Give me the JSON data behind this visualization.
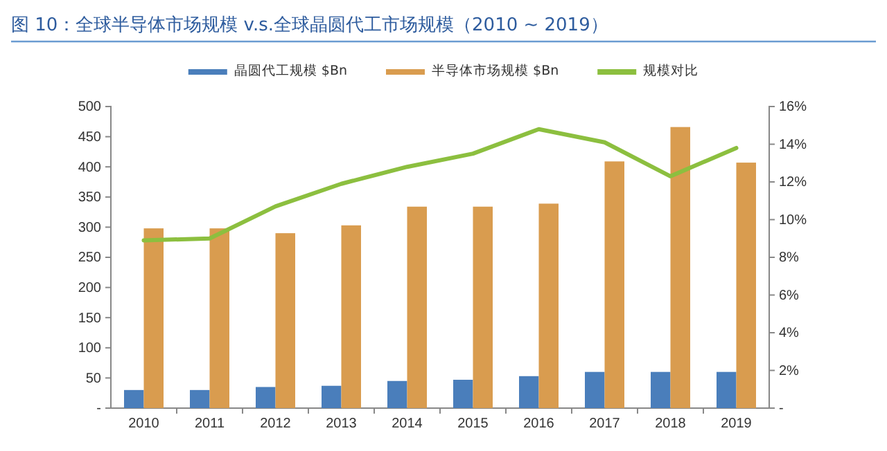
{
  "chart_data": {
    "type": "bar",
    "title": "图 10：全球半导体市场规模 v.s.全球晶圆代工市场规模（2010 ~ 2019）",
    "categories": [
      "2010",
      "2011",
      "2012",
      "2013",
      "2014",
      "2015",
      "2016",
      "2017",
      "2018",
      "2019"
    ],
    "series": [
      {
        "name": "晶圆代工规模 $Bn",
        "color": "#4a7ebb",
        "values": [
          30,
          30,
          35,
          37,
          45,
          47,
          53,
          60,
          60,
          60
        ]
      },
      {
        "name": "半导体市场规模 $Bn",
        "color": "#d99c4f",
        "values": [
          298,
          298,
          290,
          303,
          334,
          334,
          339,
          409,
          466,
          407
        ]
      },
      {
        "name": "规模对比",
        "type": "line",
        "axis": "y2",
        "color": "#8cbf3f",
        "values": [
          8.9,
          9.0,
          10.7,
          11.9,
          12.8,
          13.5,
          14.8,
          14.1,
          12.3,
          13.8
        ]
      }
    ],
    "ylim": [
      0,
      500
    ],
    "yticks": [
      {
        "value": 0,
        "label": "-"
      },
      50,
      100,
      150,
      200,
      250,
      300,
      350,
      400,
      450,
      500
    ],
    "y2lim": [
      0,
      16
    ],
    "y2ticks": [
      {
        "value": 0,
        "label": "-"
      },
      {
        "value": 2,
        "label": "2%"
      },
      {
        "value": 4,
        "label": "4%"
      },
      {
        "value": 6,
        "label": "6%"
      },
      {
        "value": 8,
        "label": "8%"
      },
      {
        "value": 10,
        "label": "10%"
      },
      {
        "value": 12,
        "label": "12%"
      },
      {
        "value": 14,
        "label": "14%"
      },
      {
        "value": 16,
        "label": "16%"
      }
    ],
    "legend": "top",
    "grid": false,
    "marker": "none"
  }
}
